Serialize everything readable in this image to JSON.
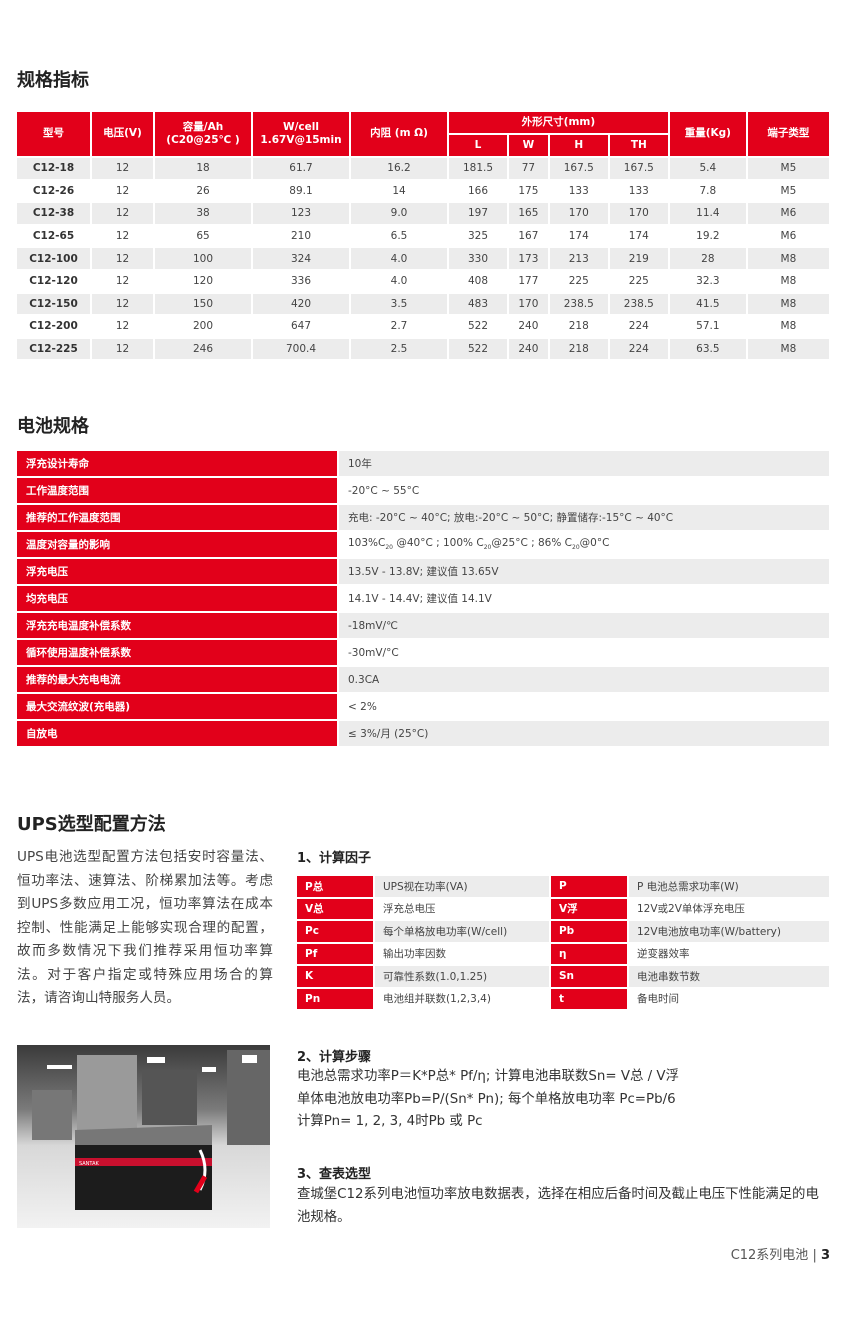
{
  "spec_section": {
    "title": "规格指标",
    "headers": {
      "model": "型号",
      "voltage": "电压(V)",
      "capacity": "容量/Ah",
      "capacity_sub": "(C20@25℃ )",
      "wcell": "W/cell",
      "wcell_sub": "1.67V@15min",
      "resistance": "内阻 (m Ω)",
      "dims": "外形尺寸(mm)",
      "L": "L",
      "W": "W",
      "H": "H",
      "TH": "TH",
      "weight": "重量(Kg)",
      "terminal": "端子类型"
    },
    "rows": [
      [
        "C12-18",
        "12",
        "18",
        "61.7",
        "16.2",
        "181.5",
        "77",
        "167.5",
        "167.5",
        "5.4",
        "M5"
      ],
      [
        "C12-26",
        "12",
        "26",
        "89.1",
        "14",
        "166",
        "175",
        "133",
        "133",
        "7.8",
        "M5"
      ],
      [
        "C12-38",
        "12",
        "38",
        "123",
        "9.0",
        "197",
        "165",
        "170",
        "170",
        "11.4",
        "M6"
      ],
      [
        "C12-65",
        "12",
        "65",
        "210",
        "6.5",
        "325",
        "167",
        "174",
        "174",
        "19.2",
        "M6"
      ],
      [
        "C12-100",
        "12",
        "100",
        "324",
        "4.0",
        "330",
        "173",
        "213",
        "219",
        "28",
        "M8"
      ],
      [
        "C12-120",
        "12",
        "120",
        "336",
        "4.0",
        "408",
        "177",
        "225",
        "225",
        "32.3",
        "M8"
      ],
      [
        "C12-150",
        "12",
        "150",
        "420",
        "3.5",
        "483",
        "170",
        "238.5",
        "238.5",
        "41.5",
        "M8"
      ],
      [
        "C12-200",
        "12",
        "200",
        "647",
        "2.7",
        "522",
        "240",
        "218",
        "224",
        "57.1",
        "M8"
      ],
      [
        "C12-225",
        "12",
        "246",
        "700.4",
        "2.5",
        "522",
        "240",
        "218",
        "224",
        "63.5",
        "M8"
      ]
    ]
  },
  "battery_spec": {
    "title": "电池规格",
    "rows": [
      {
        "k": "浮充设计寿命",
        "v": "10年"
      },
      {
        "k": "工作温度范围",
        "v": "-20°C ~ 55°C"
      },
      {
        "k": "推荐的工作温度范围",
        "v": "充电: -20°C ~ 40°C; 放电:-20°C ~ 50°C; 静置储存:-15°C ~ 40°C"
      },
      {
        "k": "温度对容量的影响",
        "v": [
          "103%C",
          "20",
          " @40°C ; 100% C",
          "20",
          "@25°C ; 86% C",
          "20",
          "@0°C"
        ]
      },
      {
        "k": "浮充电压",
        "v": "13.5V - 13.8V; 建议值 13.65V"
      },
      {
        "k": "均充电压",
        "v": "14.1V - 14.4V; 建议值 14.1V"
      },
      {
        "k": "浮充充电温度补偿系数",
        "v": "-18mV/℃"
      },
      {
        "k": "循环使用温度补偿系数",
        "v": "-30mV/°C"
      },
      {
        "k": "推荐的最大充电电流",
        "v": "0.3CA"
      },
      {
        "k": "最大交流纹波(充电器)",
        "v": "< 2%"
      },
      {
        "k": "自放电",
        "v": "≤ 3%/月 (25°C)"
      }
    ]
  },
  "ups": {
    "title": "UPS选型配置方法",
    "paragraph": "UPS电池选型配置方法包括安时容量法、恒功率法、速算法、阶梯累加法等。考虑到UPS多数应用工况，恒功率算法在成本控制、性能满足上能够实现合理的配置，故而多数情况下我们推荐采用恒功率算法。对于客户指定或特殊应用场合的算法，请咨询山特服务人员。",
    "step1_title": "1、计算因子",
    "factors": [
      [
        "P总",
        "UPS视在功率(VA)",
        "P",
        "P 电池总需求功率(W)"
      ],
      [
        "V总",
        "浮充总电压",
        "V浮",
        "12V或2V单体浮充电压"
      ],
      [
        "Pc",
        "每个单格放电功率(W/cell)",
        "Pb",
        "12V电池放电功率(W/battery)"
      ],
      [
        "Pf",
        "输出功率因数",
        "η",
        "逆变器效率"
      ],
      [
        "K",
        "可靠性系数(1.0,1.25)",
        "Sn",
        "电池串数节数"
      ],
      [
        "Pn",
        "电池组并联数(1,2,3,4)",
        "t",
        "备电时间"
      ]
    ],
    "step2_title": "2、计算步骤",
    "step2_lines": [
      "电池总需求功率P＝K*P总* Pf/η; 计算电池串联数Sn= V总 / V浮",
      "单体电池放电功率Pb=P/(Sn* Pn); 每个单格放电功率 Pc=Pb/6",
      "计算Pn= 1, 2, 3, 4时Pb 或 Pc"
    ],
    "step3_title": "3、查表选型",
    "step3_text": "查城堡C12系列电池恒功率放电数据表，选择在相应后备时间及截止电压下性能满足的电池规格。",
    "photo_brand": "SANTAK"
  },
  "footer": {
    "series": "C12系列电池 | ",
    "page": "3"
  },
  "colors": {
    "accent": "#e2001a",
    "row_alt": "#ececec"
  }
}
